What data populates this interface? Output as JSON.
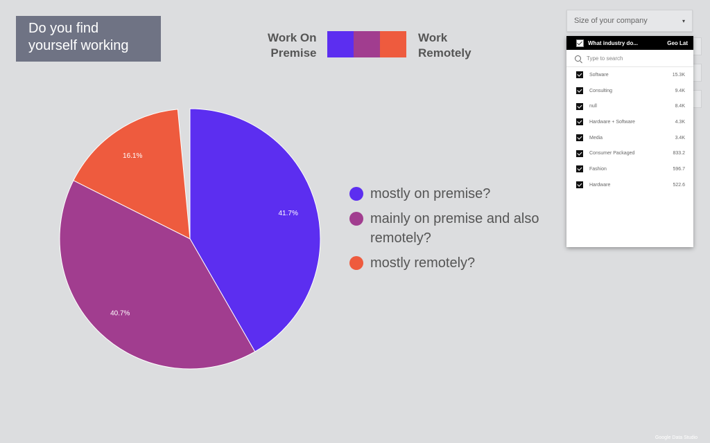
{
  "title_lines": [
    "Do you find",
    "yourself working"
  ],
  "top_legend": {
    "left_label_lines": [
      "Work On",
      "Premise"
    ],
    "right_label_lines": [
      "Work",
      "Remotely"
    ]
  },
  "colors": {
    "purple": "#5c2ef0",
    "magenta": "#a13d8f",
    "orange": "#ee5b3e"
  },
  "chart_data": {
    "type": "pie",
    "categories": [
      "mostly on premise?",
      "mainly on premise and also remotely?",
      "mostly remotely?"
    ],
    "values": [
      41.7,
      40.7,
      16.1
    ],
    "value_labels": [
      "41.7%",
      "40.7%",
      "16.1%"
    ],
    "colors": [
      "#5c2ef0",
      "#a13d8f",
      "#ee5b3e"
    ],
    "legend_placement": "right"
  },
  "filter": {
    "label": "Size of your company",
    "caret": "▾"
  },
  "dropdown": {
    "header_col1": "What industry do...",
    "header_col2": "Geo Lat",
    "search_placeholder": "Type to search",
    "items": [
      {
        "name": "Software",
        "value": "15.3K"
      },
      {
        "name": "Consulting",
        "value": "9.4K"
      },
      {
        "name": "null",
        "value": "8.4K"
      },
      {
        "name": "Hardware + Software",
        "value": "4.3K"
      },
      {
        "name": "Media",
        "value": "3.4K"
      },
      {
        "name": "Consumer Packaged",
        "value": "833.2"
      },
      {
        "name": "Fashion",
        "value": "596.7"
      },
      {
        "name": "Hardware",
        "value": "522.6"
      }
    ]
  },
  "watermark": "Google Data Studio"
}
